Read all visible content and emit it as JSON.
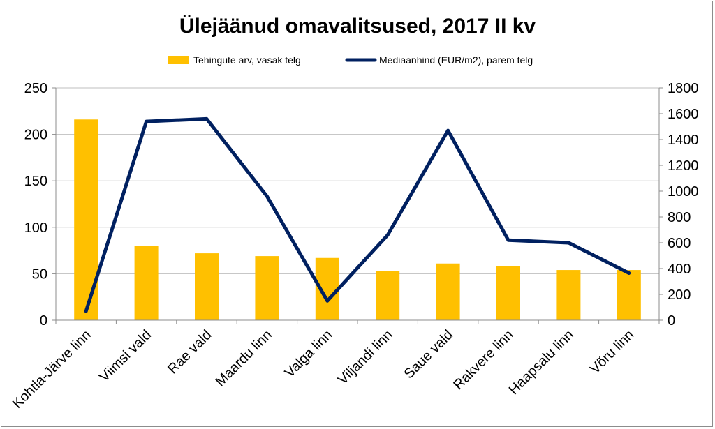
{
  "chart_data": {
    "type": "bar+line",
    "title": "Ülejäänud omavalitsused, 2017 II kv",
    "categories": [
      "Kohtla-Järve linn",
      "Viimsi vald",
      "Rae vald",
      "Maardu linn",
      "Valga linn",
      "Viljandi linn",
      "Saue vald",
      "Rakvere linn",
      "Haapsalu linn",
      "Võru linn"
    ],
    "series": [
      {
        "name": "Tehingute arv, vasak telg",
        "type": "bar",
        "axis": "left",
        "color": "#FFC000",
        "values": [
          216,
          80,
          72,
          69,
          67,
          53,
          61,
          58,
          54,
          54
        ]
      },
      {
        "name": "Mediaanhind (EUR/m2), parem telg",
        "type": "line",
        "axis": "right",
        "color": "#002060",
        "values": [
          70,
          1540,
          1560,
          960,
          150,
          660,
          1470,
          620,
          600,
          365
        ]
      }
    ],
    "y_left": {
      "min": 0,
      "max": 250,
      "ticks": [
        "0",
        "50",
        "100",
        "150",
        "200",
        "250"
      ]
    },
    "y_right": {
      "min": 0,
      "max": 1800,
      "ticks": [
        "0",
        "200",
        "400",
        "600",
        "800",
        "1000",
        "1200",
        "1400",
        "1600",
        "1800"
      ]
    },
    "grid": "horizontal",
    "legend": "top-center"
  }
}
